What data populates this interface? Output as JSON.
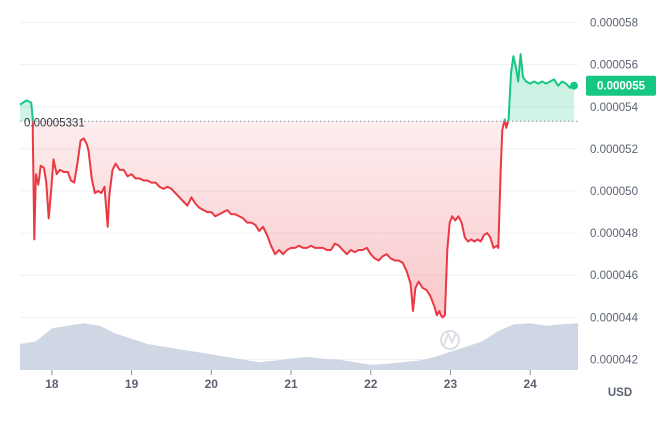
{
  "chart_data": {
    "type": "line",
    "xlabel": "",
    "ylabel": "",
    "currency": "USD",
    "x_ticks": [
      "18",
      "19",
      "20",
      "21",
      "22",
      "23",
      "24"
    ],
    "y_ticks": [
      "0.000042",
      "0.000044",
      "0.000046",
      "0.000048",
      "0.000050",
      "0.000052",
      "0.000054",
      "0.000056",
      "0.000058"
    ],
    "ylim": [
      4.15e-05,
      5.85e-05
    ],
    "xlim": [
      17.6,
      24.6
    ],
    "grid": "horizontal",
    "reference": {
      "value": 5.331e-05,
      "label": "0.00005331"
    },
    "current_price": {
      "value": 5.5e-05,
      "label": "0.000055"
    },
    "colors": {
      "up": "#16c784",
      "down": "#ea3943",
      "volume": "#cfd6e4",
      "tag": "#16c784"
    },
    "series": [
      {
        "values": [
          [
            17.6,
            5.41e-05
          ],
          [
            17.68,
            5.43e-05
          ],
          [
            17.74,
            5.42e-05
          ],
          [
            17.76,
            5.34e-05
          ],
          [
            17.76,
            5.27e-05
          ],
          [
            17.78,
            4.77e-05
          ],
          [
            17.8,
            5.08e-05
          ],
          [
            17.83,
            5.03e-05
          ],
          [
            17.86,
            5.12e-05
          ],
          [
            17.9,
            5.11e-05
          ],
          [
            17.93,
            5.04e-05
          ],
          [
            17.96,
            4.87e-05
          ],
          [
            17.99,
            5e-05
          ],
          [
            18.02,
            5.15e-05
          ],
          [
            18.06,
            5.08e-05
          ],
          [
            18.1,
            5.1e-05
          ],
          [
            18.15,
            5.09e-05
          ],
          [
            18.2,
            5.09e-05
          ],
          [
            18.24,
            5.05e-05
          ],
          [
            18.28,
            5.04e-05
          ],
          [
            18.32,
            5.13e-05
          ],
          [
            18.36,
            5.24e-05
          ],
          [
            18.4,
            5.25e-05
          ],
          [
            18.44,
            5.22e-05
          ],
          [
            18.46,
            5.19e-05
          ],
          [
            18.5,
            5.06e-05
          ],
          [
            18.54,
            4.99e-05
          ],
          [
            18.58,
            5e-05
          ],
          [
            18.62,
            4.99e-05
          ],
          [
            18.66,
            5.02e-05
          ],
          [
            18.7,
            4.83e-05
          ],
          [
            18.72,
            4.98e-05
          ],
          [
            18.76,
            5.1e-05
          ],
          [
            18.8,
            5.13e-05
          ],
          [
            18.85,
            5.1e-05
          ],
          [
            18.9,
            5.1e-05
          ],
          [
            18.95,
            5.07e-05
          ],
          [
            19.0,
            5.08e-05
          ],
          [
            19.05,
            5.06e-05
          ],
          [
            19.1,
            5.06e-05
          ],
          [
            19.15,
            5.05e-05
          ],
          [
            19.2,
            5.05e-05
          ],
          [
            19.25,
            5.04e-05
          ],
          [
            19.3,
            5.04e-05
          ],
          [
            19.35,
            5.02e-05
          ],
          [
            19.4,
            5.01e-05
          ],
          [
            19.45,
            5.02e-05
          ],
          [
            19.5,
            5.01e-05
          ],
          [
            19.55,
            4.99e-05
          ],
          [
            19.6,
            4.97e-05
          ],
          [
            19.65,
            4.95e-05
          ],
          [
            19.7,
            4.93e-05
          ],
          [
            19.75,
            4.97e-05
          ],
          [
            19.8,
            4.94e-05
          ],
          [
            19.85,
            4.92e-05
          ],
          [
            19.9,
            4.91e-05
          ],
          [
            19.95,
            4.9e-05
          ],
          [
            20.0,
            4.9e-05
          ],
          [
            20.05,
            4.88e-05
          ],
          [
            20.1,
            4.89e-05
          ],
          [
            20.15,
            4.9e-05
          ],
          [
            20.2,
            4.91e-05
          ],
          [
            20.25,
            4.89e-05
          ],
          [
            20.3,
            4.89e-05
          ],
          [
            20.35,
            4.88e-05
          ],
          [
            20.4,
            4.87e-05
          ],
          [
            20.45,
            4.85e-05
          ],
          [
            20.5,
            4.85e-05
          ],
          [
            20.55,
            4.84e-05
          ],
          [
            20.6,
            4.81e-05
          ],
          [
            20.65,
            4.83e-05
          ],
          [
            20.7,
            4.79e-05
          ],
          [
            20.75,
            4.74e-05
          ],
          [
            20.8,
            4.7e-05
          ],
          [
            20.85,
            4.72e-05
          ],
          [
            20.9,
            4.7e-05
          ],
          [
            20.95,
            4.72e-05
          ],
          [
            21.0,
            4.73e-05
          ],
          [
            21.05,
            4.73e-05
          ],
          [
            21.1,
            4.74e-05
          ],
          [
            21.15,
            4.73e-05
          ],
          [
            21.2,
            4.73e-05
          ],
          [
            21.25,
            4.74e-05
          ],
          [
            21.3,
            4.73e-05
          ],
          [
            21.35,
            4.73e-05
          ],
          [
            21.4,
            4.73e-05
          ],
          [
            21.45,
            4.72e-05
          ],
          [
            21.5,
            4.72e-05
          ],
          [
            21.55,
            4.75e-05
          ],
          [
            21.6,
            4.74e-05
          ],
          [
            21.65,
            4.72e-05
          ],
          [
            21.7,
            4.7e-05
          ],
          [
            21.75,
            4.72e-05
          ],
          [
            21.8,
            4.71e-05
          ],
          [
            21.85,
            4.72e-05
          ],
          [
            21.9,
            4.72e-05
          ],
          [
            21.95,
            4.73e-05
          ],
          [
            22.0,
            4.7e-05
          ],
          [
            22.05,
            4.68e-05
          ],
          [
            22.1,
            4.67e-05
          ],
          [
            22.15,
            4.69e-05
          ],
          [
            22.2,
            4.7e-05
          ],
          [
            22.25,
            4.68e-05
          ],
          [
            22.3,
            4.67e-05
          ],
          [
            22.35,
            4.67e-05
          ],
          [
            22.4,
            4.66e-05
          ],
          [
            22.45,
            4.62e-05
          ],
          [
            22.5,
            4.56e-05
          ],
          [
            22.53,
            4.43e-05
          ],
          [
            22.56,
            4.54e-05
          ],
          [
            22.6,
            4.57e-05
          ],
          [
            22.65,
            4.54e-05
          ],
          [
            22.7,
            4.53e-05
          ],
          [
            22.75,
            4.5e-05
          ],
          [
            22.8,
            4.45e-05
          ],
          [
            22.83,
            4.41e-05
          ],
          [
            22.86,
            4.43e-05
          ],
          [
            22.88,
            4.41e-05
          ],
          [
            22.9,
            4.4e-05
          ],
          [
            22.93,
            4.41e-05
          ],
          [
            22.96,
            4.72e-05
          ],
          [
            22.99,
            4.85e-05
          ],
          [
            23.02,
            4.88e-05
          ],
          [
            23.06,
            4.86e-05
          ],
          [
            23.1,
            4.88e-05
          ],
          [
            23.14,
            4.85e-05
          ],
          [
            23.18,
            4.78e-05
          ],
          [
            23.22,
            4.76e-05
          ],
          [
            23.26,
            4.77e-05
          ],
          [
            23.3,
            4.76e-05
          ],
          [
            23.34,
            4.77e-05
          ],
          [
            23.38,
            4.76e-05
          ],
          [
            23.42,
            4.79e-05
          ],
          [
            23.46,
            4.8e-05
          ],
          [
            23.5,
            4.78e-05
          ],
          [
            23.54,
            4.73e-05
          ],
          [
            23.58,
            4.74e-05
          ],
          [
            23.6,
            4.73e-05
          ],
          [
            23.63,
            5.1e-05
          ],
          [
            23.65,
            5.29e-05
          ],
          [
            23.68,
            5.34e-05
          ],
          [
            23.7,
            5.3e-05
          ],
          [
            23.73,
            5.34e-05
          ],
          [
            23.76,
            5.56e-05
          ],
          [
            23.79,
            5.64e-05
          ],
          [
            23.82,
            5.59e-05
          ],
          [
            23.85,
            5.52e-05
          ],
          [
            23.88,
            5.65e-05
          ],
          [
            23.91,
            5.54e-05
          ],
          [
            23.95,
            5.52e-05
          ],
          [
            24.0,
            5.51e-05
          ],
          [
            24.05,
            5.52e-05
          ],
          [
            24.1,
            5.51e-05
          ],
          [
            24.15,
            5.52e-05
          ],
          [
            24.2,
            5.51e-05
          ],
          [
            24.25,
            5.52e-05
          ],
          [
            24.3,
            5.53e-05
          ],
          [
            24.35,
            5.5e-05
          ],
          [
            24.4,
            5.52e-05
          ],
          [
            24.45,
            5.51e-05
          ],
          [
            24.5,
            5.49e-05
          ],
          [
            24.55,
            5.5e-05
          ]
        ]
      }
    ],
    "volume_series": [
      [
        17.6,
        0.5
      ],
      [
        17.8,
        0.55
      ],
      [
        18.0,
        0.8
      ],
      [
        18.2,
        0.85
      ],
      [
        18.4,
        0.9
      ],
      [
        18.6,
        0.85
      ],
      [
        18.8,
        0.7
      ],
      [
        19.0,
        0.6
      ],
      [
        19.2,
        0.5
      ],
      [
        19.4,
        0.45
      ],
      [
        19.6,
        0.4
      ],
      [
        19.8,
        0.35
      ],
      [
        20.0,
        0.3
      ],
      [
        20.2,
        0.25
      ],
      [
        20.4,
        0.2
      ],
      [
        20.6,
        0.15
      ],
      [
        20.8,
        0.18
      ],
      [
        21.0,
        0.22
      ],
      [
        21.2,
        0.25
      ],
      [
        21.4,
        0.22
      ],
      [
        21.6,
        0.2
      ],
      [
        21.8,
        0.15
      ],
      [
        22.0,
        0.1
      ],
      [
        22.2,
        0.12
      ],
      [
        22.4,
        0.15
      ],
      [
        22.6,
        0.18
      ],
      [
        22.8,
        0.25
      ],
      [
        23.0,
        0.35
      ],
      [
        23.2,
        0.45
      ],
      [
        23.4,
        0.55
      ],
      [
        23.6,
        0.75
      ],
      [
        23.8,
        0.88
      ],
      [
        24.0,
        0.9
      ],
      [
        24.2,
        0.85
      ],
      [
        24.4,
        0.88
      ],
      [
        24.6,
        0.9
      ]
    ]
  }
}
